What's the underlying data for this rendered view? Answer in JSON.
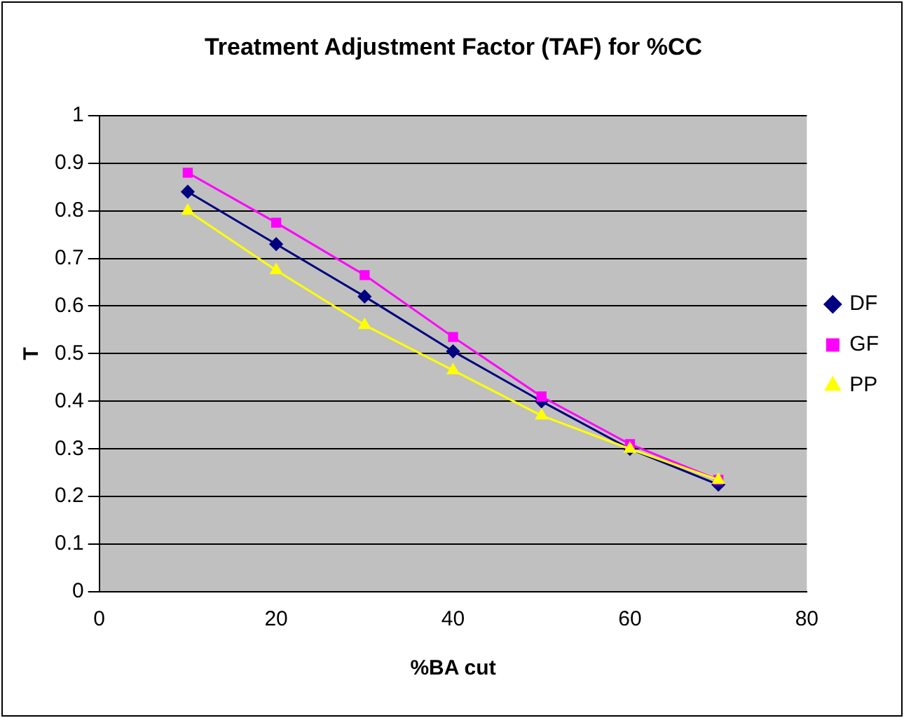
{
  "chart_data": {
    "type": "line",
    "title": "Treatment Adjustment Factor (TAF) for %CC",
    "xlabel": "%BA cut",
    "ylabel": "T",
    "x": [
      10,
      20,
      30,
      40,
      50,
      60,
      70
    ],
    "series": [
      {
        "name": "DF",
        "color": "#000080",
        "marker": "diamond",
        "values": [
          0.84,
          0.73,
          0.62,
          0.505,
          0.4,
          0.3,
          0.225
        ]
      },
      {
        "name": "GF",
        "color": "#ff00ff",
        "marker": "square",
        "values": [
          0.88,
          0.775,
          0.665,
          0.535,
          0.41,
          0.31,
          0.235
        ]
      },
      {
        "name": "PP",
        "color": "#ffff00",
        "marker": "triangle",
        "values": [
          0.8,
          0.675,
          0.56,
          0.465,
          0.37,
          0.3,
          0.235
        ]
      }
    ],
    "xlim": [
      0,
      80
    ],
    "xticks": [
      0,
      20,
      40,
      60,
      80
    ],
    "ylim": [
      0,
      1
    ],
    "yticks": [
      0,
      0.1,
      0.2,
      0.3,
      0.4,
      0.5,
      0.6,
      0.7,
      0.8,
      0.9,
      1
    ],
    "grid": "y",
    "legend": "right"
  }
}
